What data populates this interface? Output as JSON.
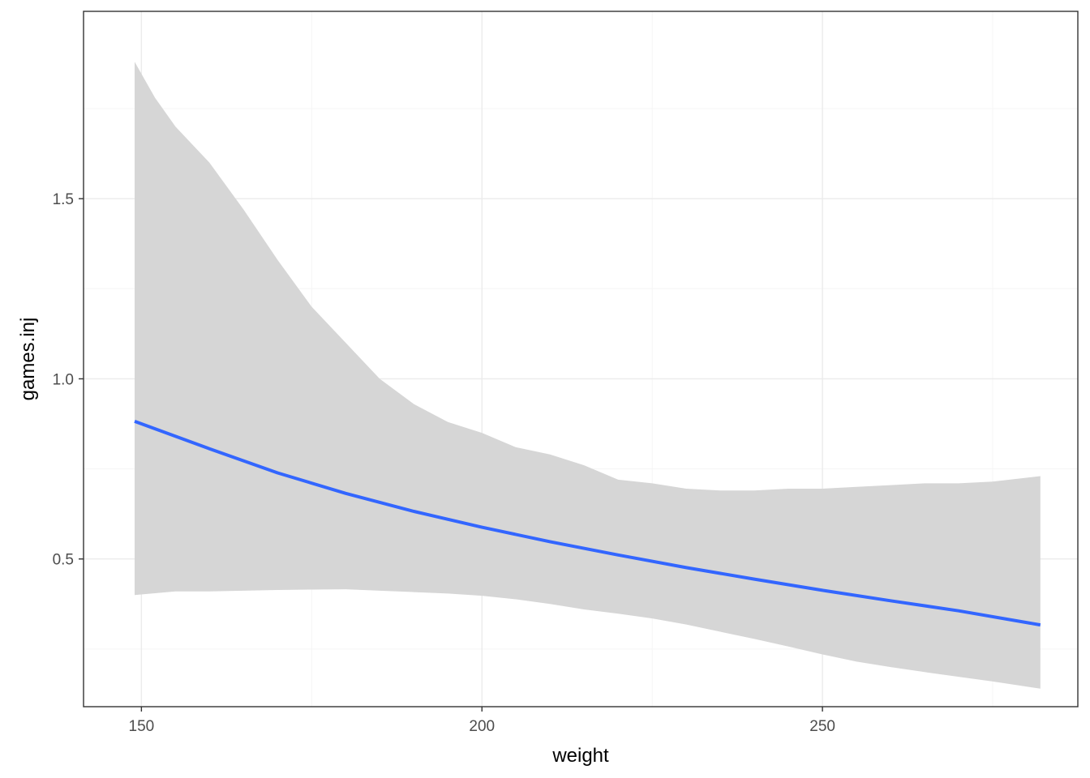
{
  "chart_data": {
    "type": "line",
    "title": "",
    "xlabel": "weight",
    "ylabel": "games.inj",
    "xlim": [
      141.5,
      287.5
    ],
    "ylim": [
      0.09,
      2.02
    ],
    "x_ticks": [
      150,
      200,
      250
    ],
    "x_tick_labels": [
      "150",
      "200",
      "250"
    ],
    "x_minor_ticks": [
      175,
      225,
      275
    ],
    "y_ticks": [
      0.5,
      1.0,
      1.5
    ],
    "y_tick_labels": [
      "0.5",
      "1.0",
      "1.5"
    ],
    "y_minor_ticks": [
      0.25,
      0.75,
      1.25,
      1.75
    ],
    "grid": true,
    "legend": "none",
    "theme": "bw",
    "colors": {
      "line": "#3366FF",
      "ribbon": "#D6D6D6",
      "grid_major": "#EBEBEB",
      "grid_minor": "#F5F5F5",
      "panel_border": "#333333"
    },
    "series": [
      {
        "type": "line",
        "x": [
          149,
          160,
          170,
          180,
          190,
          200,
          210,
          220,
          230,
          240,
          250,
          260,
          270,
          282
        ],
        "y": [
          0.882,
          0.806,
          0.739,
          0.682,
          0.632,
          0.588,
          0.548,
          0.511,
          0.476,
          0.444,
          0.413,
          0.384,
          0.356,
          0.317
        ]
      },
      {
        "type": "ribbon",
        "x": [
          149,
          152,
          155,
          160,
          165,
          170,
          175,
          180,
          185,
          190,
          195,
          200,
          205,
          210,
          215,
          220,
          225,
          230,
          235,
          240,
          245,
          250,
          255,
          260,
          265,
          270,
          275,
          282
        ],
        "upper": [
          1.88,
          1.78,
          1.7,
          1.6,
          1.47,
          1.33,
          1.2,
          1.1,
          1.0,
          0.93,
          0.88,
          0.85,
          0.81,
          0.79,
          0.76,
          0.72,
          0.71,
          0.695,
          0.69,
          0.69,
          0.695,
          0.695,
          0.7,
          0.705,
          0.71,
          0.71,
          0.715,
          0.73
        ],
        "lower": [
          0.4,
          0.405,
          0.41,
          0.41,
          0.412,
          0.414,
          0.415,
          0.416,
          0.412,
          0.408,
          0.404,
          0.398,
          0.388,
          0.375,
          0.36,
          0.348,
          0.335,
          0.318,
          0.298,
          0.278,
          0.257,
          0.235,
          0.215,
          0.2,
          0.186,
          0.173,
          0.16,
          0.14
        ]
      }
    ]
  }
}
